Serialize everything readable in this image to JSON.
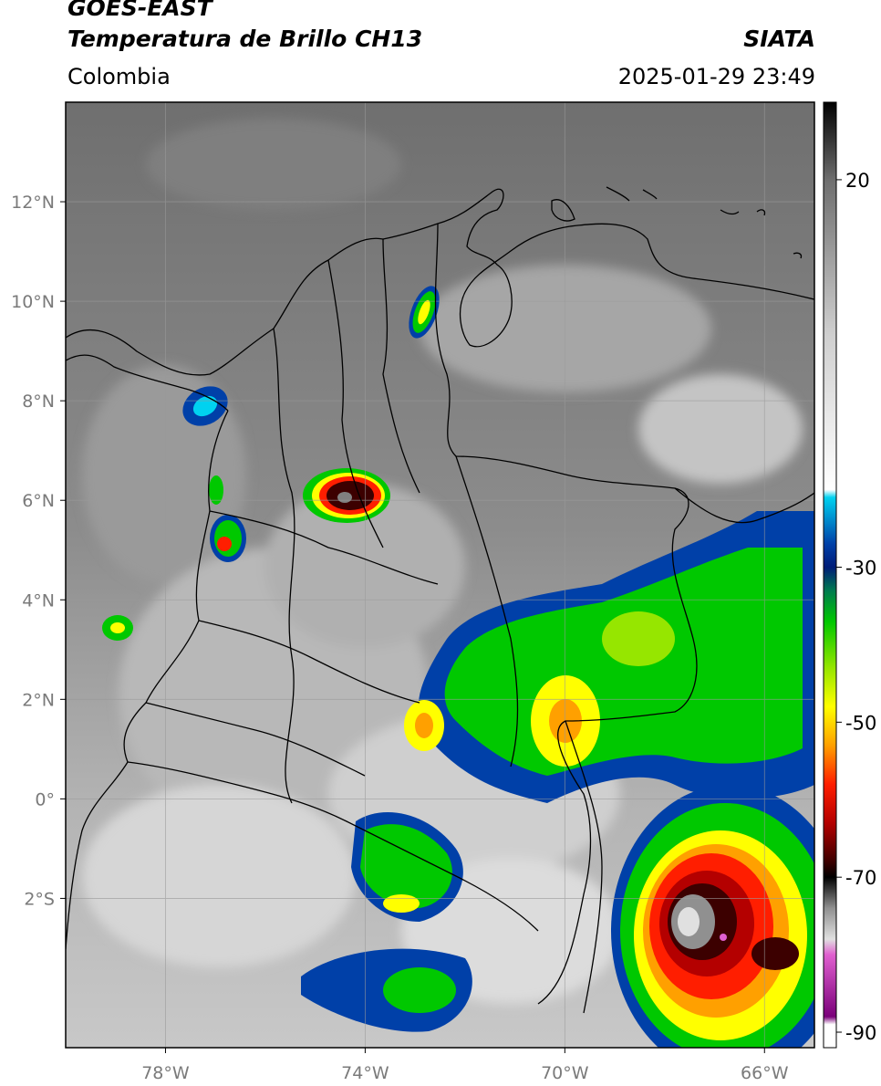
{
  "header": {
    "satellite": "GOES-EAST",
    "product": "Temperatura de Brillo CH13",
    "brand": "SIATA",
    "region": "Colombia",
    "timestamp": "2025-01-29 23:49"
  },
  "map": {
    "lon_range": [
      -80,
      -65
    ],
    "lat_range": [
      -5,
      14
    ],
    "lat_ticks": [
      {
        "value": 12,
        "label": "12°N"
      },
      {
        "value": 10,
        "label": "10°N"
      },
      {
        "value": 8,
        "label": "8°N"
      },
      {
        "value": 6,
        "label": "6°N"
      },
      {
        "value": 4,
        "label": "4°N"
      },
      {
        "value": 2,
        "label": "2°N"
      },
      {
        "value": 0,
        "label": "0°"
      },
      {
        "value": -2,
        "label": "2°S"
      }
    ],
    "lon_ticks": [
      {
        "value": -78,
        "label": "78°W"
      },
      {
        "value": -74,
        "label": "74°W"
      },
      {
        "value": -70,
        "label": "70°W"
      },
      {
        "value": -66,
        "label": "66°W"
      }
    ],
    "grid": true
  },
  "colorbar": {
    "range": [
      -92,
      30
    ],
    "ticks": [
      {
        "value": 20,
        "label": "20"
      },
      {
        "value": -30,
        "label": "-30"
      },
      {
        "value": -50,
        "label": "-50"
      },
      {
        "value": -70,
        "label": "-70"
      },
      {
        "value": -90,
        "label": "-90"
      }
    ],
    "palette": [
      {
        "t": 30,
        "c": "#000000"
      },
      {
        "t": 20,
        "c": "#6e6e6e"
      },
      {
        "t": 0,
        "c": "#cfcfcf"
      },
      {
        "t": -20,
        "c": "#ffffff"
      },
      {
        "t": -21,
        "c": "#00d2f0"
      },
      {
        "t": -27,
        "c": "#0040a8"
      },
      {
        "t": -30,
        "c": "#001c78"
      },
      {
        "t": -33,
        "c": "#007a50"
      },
      {
        "t": -37,
        "c": "#00c800"
      },
      {
        "t": -43,
        "c": "#96e600"
      },
      {
        "t": -48,
        "c": "#ffff00"
      },
      {
        "t": -53,
        "c": "#ffa000"
      },
      {
        "t": -58,
        "c": "#ff1e00"
      },
      {
        "t": -63,
        "c": "#b40000"
      },
      {
        "t": -68,
        "c": "#3c0000"
      },
      {
        "t": -70,
        "c": "#000000"
      },
      {
        "t": -74,
        "c": "#909090"
      },
      {
        "t": -78,
        "c": "#e0e0e0"
      },
      {
        "t": -80,
        "c": "#e060d0"
      },
      {
        "t": -88,
        "c": "#7a007a"
      },
      {
        "t": -89,
        "c": "#ffffff"
      },
      {
        "t": -92,
        "c": "#ffffff"
      }
    ]
  }
}
